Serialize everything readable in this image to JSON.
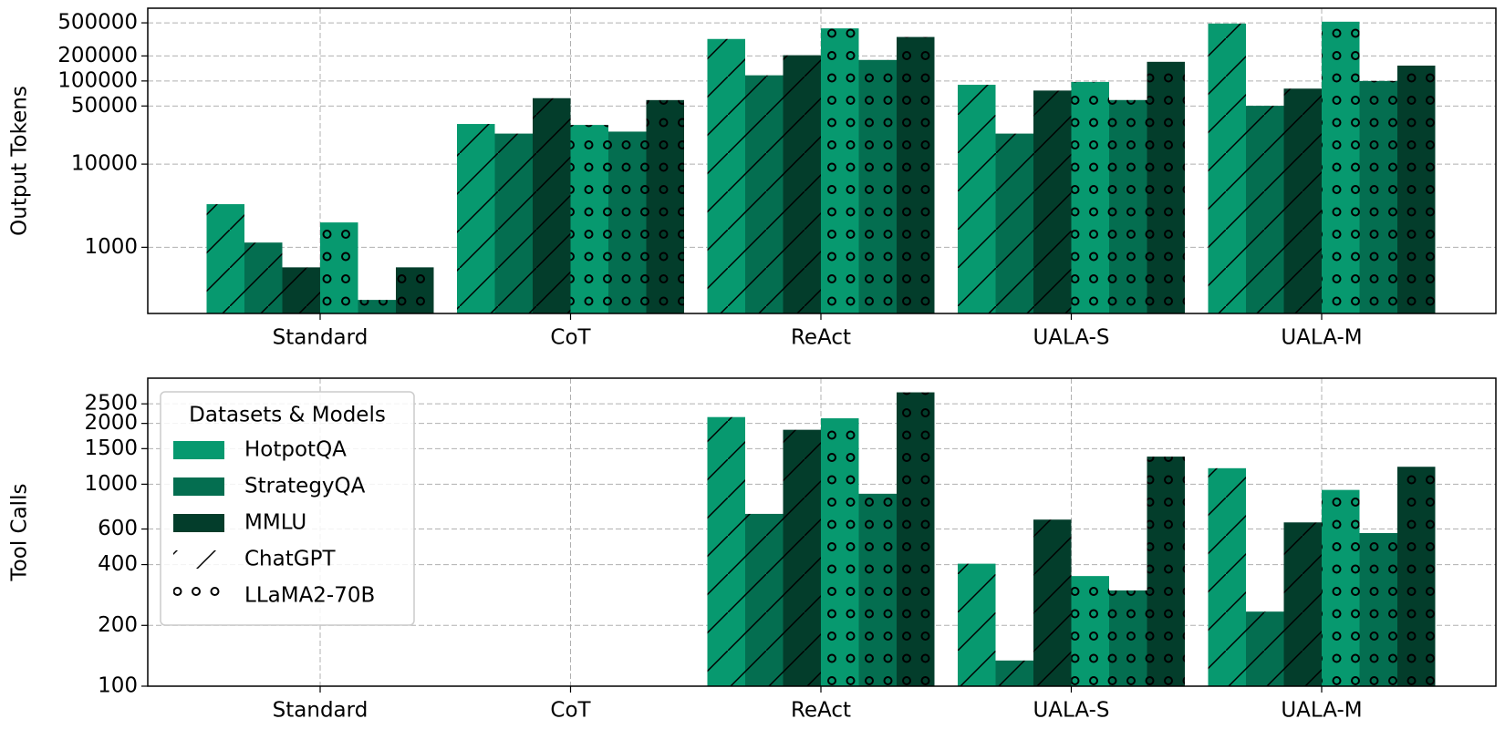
{
  "chart_data": [
    {
      "type": "bar",
      "ylabel": "Output Tokens",
      "log": true,
      "grid": true,
      "categories": [
        "Standard",
        "CoT",
        "ReAct",
        "UALA-S",
        "UALA-M"
      ],
      "ylim": [
        160,
        750000
      ],
      "yticks": [
        1000,
        10000,
        50000,
        100000,
        200000,
        500000
      ],
      "series": [
        {
          "color": "#07996f",
          "hatch": "/",
          "values": [
            3300,
            30400,
            320000,
            90000,
            490000
          ]
        },
        {
          "color": "#046e50",
          "hatch": "/",
          "values": [
            1140,
            23300,
            117000,
            23300,
            50300
          ]
        },
        {
          "color": "#033d2b",
          "hatch": "/",
          "values": [
            574,
            62100,
            204000,
            76700,
            80900
          ]
        },
        {
          "color": "#07996f",
          "hatch": "o",
          "values": [
            1990,
            29600,
            429000,
            97400,
            516000
          ]
        },
        {
          "color": "#046e50",
          "hatch": "o",
          "values": [
            233,
            24600,
            179000,
            59000,
            100000
          ]
        },
        {
          "color": "#033d2b",
          "hatch": "o",
          "values": [
            574,
            58900,
            338000,
            170000,
            153000
          ]
        }
      ]
    },
    {
      "type": "bar",
      "ylabel": "Tool Calls",
      "log": true,
      "grid": true,
      "categories": [
        "Standard",
        "CoT",
        "ReAct",
        "UALA-S",
        "UALA-M"
      ],
      "ylim": [
        100,
        3350
      ],
      "yticks": [
        100,
        200,
        400,
        600,
        1000,
        1500,
        2000,
        2500
      ],
      "series": [
        {
          "color": "#07996f",
          "hatch": "/",
          "values": [
            null,
            null,
            2150,
            404,
            1200
          ]
        },
        {
          "color": "#046e50",
          "hatch": "/",
          "values": [
            null,
            null,
            713,
            134,
            234
          ]
        },
        {
          "color": "#033d2b",
          "hatch": "/",
          "values": [
            null,
            null,
            1860,
            668,
            647
          ]
        },
        {
          "color": "#07996f",
          "hatch": "o",
          "values": [
            null,
            null,
            2120,
            351,
            937
          ]
        },
        {
          "color": "#046e50",
          "hatch": "o",
          "values": [
            null,
            null,
            897,
            298,
            573
          ]
        },
        {
          "color": "#033d2b",
          "hatch": "o",
          "values": [
            null,
            null,
            2850,
            1370,
            1220
          ]
        }
      ],
      "legend": {
        "title": "Datasets & Models",
        "loc": "upper left",
        "entries": [
          {
            "name": "HotpotQA",
            "color": "#07996f"
          },
          {
            "name": "StrategyQA",
            "color": "#046e50"
          },
          {
            "name": "MMLU",
            "color": "#033d2b"
          },
          {
            "name": "ChatGPT",
            "hatch": "/"
          },
          {
            "name": "LLaMA2-70B",
            "hatch": "o"
          }
        ]
      }
    }
  ]
}
